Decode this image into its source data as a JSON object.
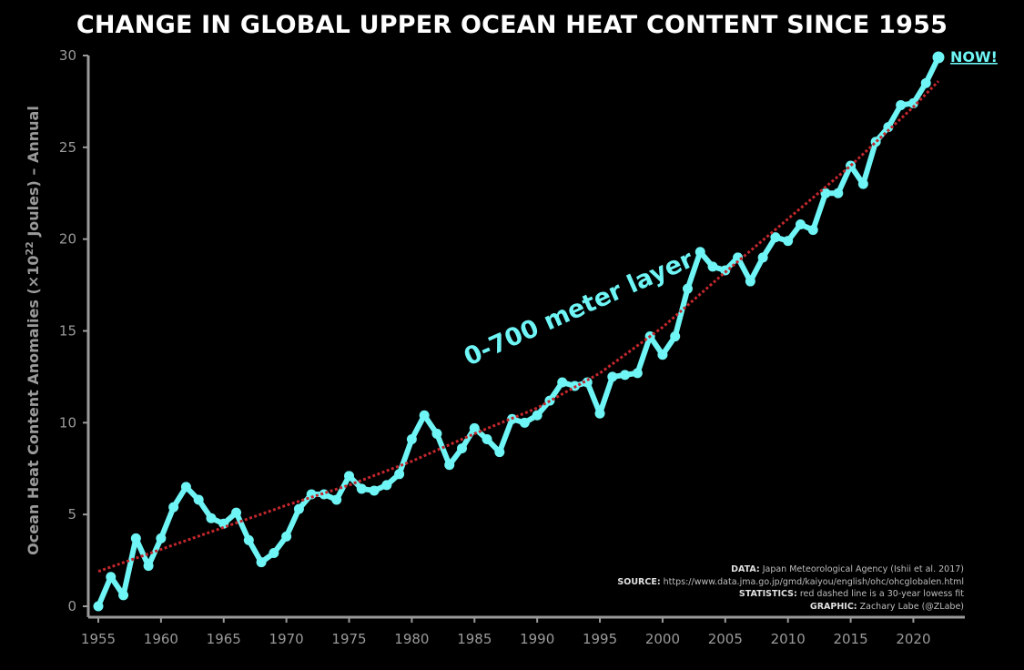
{
  "chart_data": {
    "type": "line",
    "title": "CHANGE IN GLOBAL UPPER OCEAN HEAT CONTENT SINCE 1955",
    "ylabel_prefix": "Ocean Heat Content Anomalies (×10",
    "ylabel_exp": "22",
    "ylabel_suffix": " Joules) – Annual",
    "xlim": [
      1955,
      2022
    ],
    "ylim": [
      0,
      30
    ],
    "xticks": [
      1955,
      1960,
      1965,
      1970,
      1975,
      1980,
      1985,
      1990,
      1995,
      2000,
      2005,
      2010,
      2015,
      2020
    ],
    "yticks": [
      0,
      5,
      10,
      15,
      20,
      25,
      30
    ],
    "grid": false,
    "series": [
      {
        "name": "0-700 meter layer",
        "color": "#6ff5f5",
        "x": [
          1955,
          1956,
          1957,
          1958,
          1959,
          1960,
          1961,
          1962,
          1963,
          1964,
          1965,
          1966,
          1967,
          1968,
          1969,
          1970,
          1971,
          1972,
          1973,
          1974,
          1975,
          1976,
          1977,
          1978,
          1979,
          1980,
          1981,
          1982,
          1983,
          1984,
          1985,
          1986,
          1987,
          1988,
          1989,
          1990,
          1991,
          1992,
          1993,
          1994,
          1995,
          1996,
          1997,
          1998,
          1999,
          2000,
          2001,
          2002,
          2003,
          2004,
          2005,
          2006,
          2007,
          2008,
          2009,
          2010,
          2011,
          2012,
          2013,
          2014,
          2015,
          2016,
          2017,
          2018,
          2019,
          2020,
          2021,
          2022
        ],
        "y": [
          0.0,
          1.6,
          0.6,
          3.7,
          2.2,
          3.7,
          5.4,
          6.5,
          5.8,
          4.8,
          4.5,
          5.1,
          3.6,
          2.4,
          2.9,
          3.8,
          5.3,
          6.1,
          6.1,
          5.8,
          7.1,
          6.4,
          6.3,
          6.6,
          7.2,
          9.1,
          10.4,
          9.4,
          7.7,
          8.6,
          9.7,
          9.1,
          8.4,
          10.2,
          10.0,
          10.4,
          11.2,
          12.2,
          12.0,
          12.2,
          10.5,
          12.5,
          12.6,
          12.7,
          14.7,
          13.7,
          14.7,
          17.3,
          19.3,
          18.5,
          18.3,
          19.0,
          17.7,
          19.0,
          20.1,
          19.9,
          20.8,
          20.5,
          22.5,
          22.5,
          24.0,
          23.0,
          25.3,
          26.1,
          27.3,
          27.4,
          28.5,
          29.9
        ]
      },
      {
        "name": "30-year lowess fit",
        "color": "#c1272d",
        "style": "dashed",
        "x": [
          1955,
          1960,
          1965,
          1970,
          1975,
          1980,
          1985,
          1990,
          1995,
          2000,
          2005,
          2010,
          2015,
          2020,
          2022
        ],
        "y": [
          1.9,
          3.1,
          4.3,
          5.5,
          6.6,
          7.9,
          9.4,
          10.8,
          12.7,
          15.2,
          18.2,
          21.1,
          24.0,
          27.2,
          28.6
        ]
      }
    ],
    "annotations": {
      "layer": "0-700 meter layer",
      "now": "NOW!"
    }
  },
  "credits": {
    "data_key": "DATA:",
    "data_val": " Japan Meteorological Agency (Ishii et al. 2017)",
    "source_key": "SOURCE:",
    "source_val": " https://www.data.jma.go.jp/gmd/kaiyou/english/ohc/ohcglobalen.html",
    "stats_key": "STATISTICS:",
    "stats_val": " red dashed line is a 30-year lowess fit",
    "graphic_key": "GRAPHIC:",
    "graphic_val": " Zachary Labe (@ZLabe)"
  }
}
